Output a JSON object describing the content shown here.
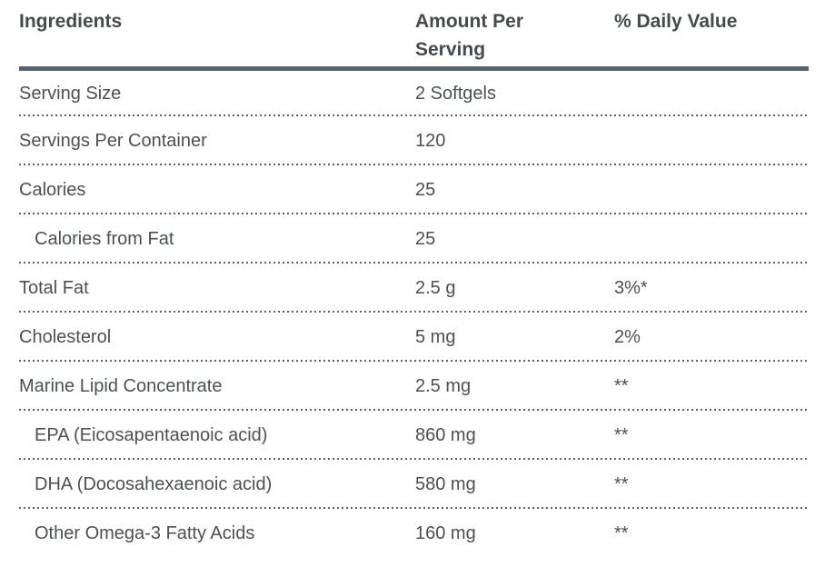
{
  "table": {
    "columns": [
      {
        "label": "Ingredients"
      },
      {
        "label": "Amount Per Serving"
      },
      {
        "label": "% Daily Value"
      }
    ],
    "rows": [
      {
        "ingredient": "Serving Size",
        "amount": "2 Softgels",
        "daily_value": "",
        "indent": false
      },
      {
        "ingredient": "Servings Per Container",
        "amount": "120",
        "daily_value": "",
        "indent": false
      },
      {
        "ingredient": "Calories",
        "amount": "25",
        "daily_value": "",
        "indent": false
      },
      {
        "ingredient": "Calories from Fat",
        "amount": "25",
        "daily_value": "",
        "indent": true
      },
      {
        "ingredient": "Total Fat",
        "amount": "2.5 g",
        "daily_value": "3%*",
        "indent": false
      },
      {
        "ingredient": "Cholesterol",
        "amount": "5 mg",
        "daily_value": "2%",
        "indent": false
      },
      {
        "ingredient": "Marine Lipid Concentrate",
        "amount": "2.5 mg",
        "daily_value": "**",
        "indent": false
      },
      {
        "ingredient": "EPA (Eicosapentaenoic acid)",
        "amount": "860 mg",
        "daily_value": "**",
        "indent": true
      },
      {
        "ingredient": "DHA (Docosahexaenoic acid)",
        "amount": "580 mg",
        "daily_value": "**",
        "indent": true
      },
      {
        "ingredient": "Other Omega-3 Fatty Acids",
        "amount": "160 mg",
        "daily_value": "**",
        "indent": true
      }
    ],
    "colors": {
      "header_rule": "#56646F",
      "row_divider_dots": "#56646F",
      "header_text": "#454A4D",
      "body_text": "#4C5054",
      "background": "#FFFFFF"
    }
  }
}
